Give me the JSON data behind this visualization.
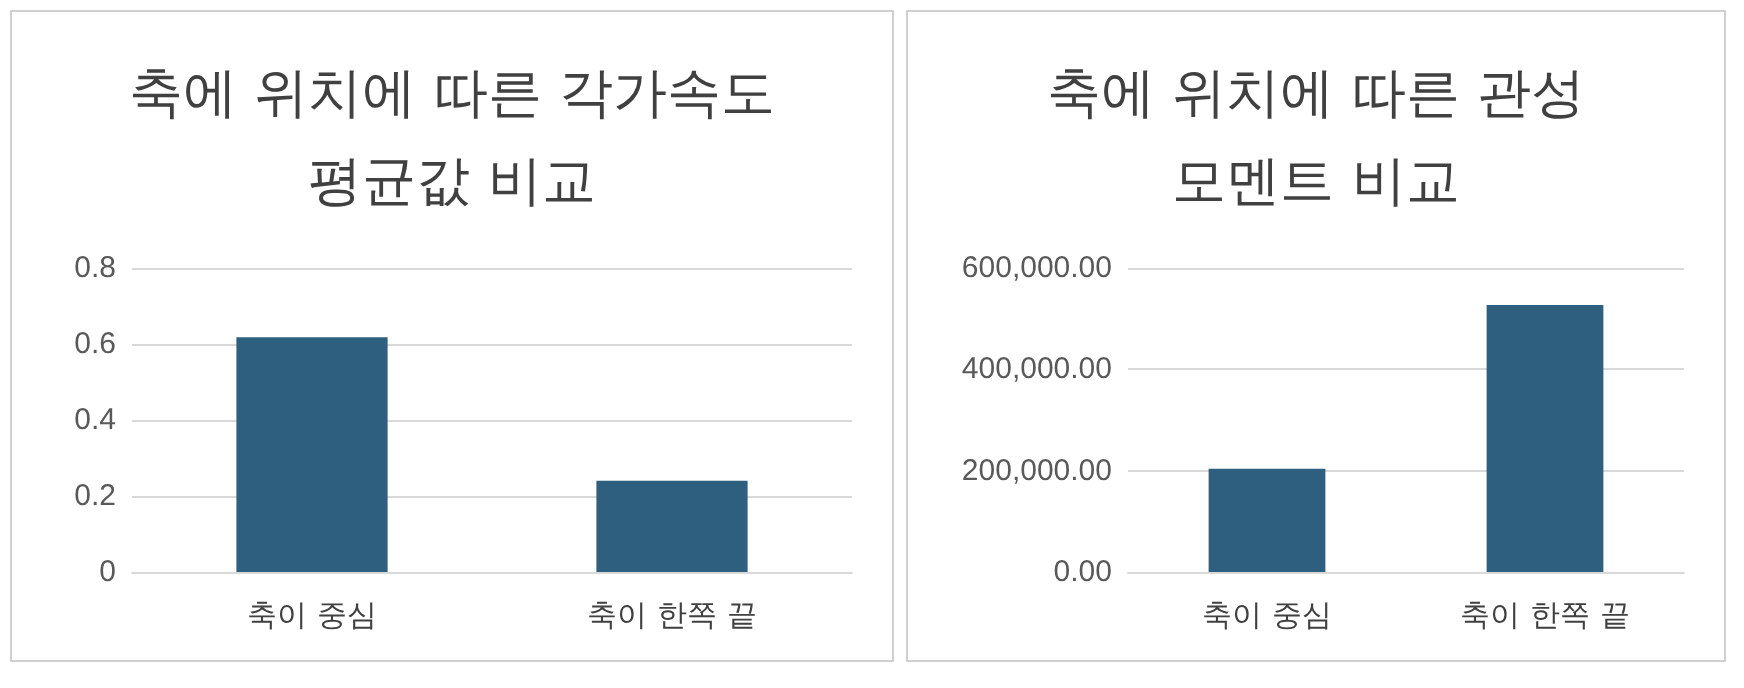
{
  "chart_data": [
    {
      "type": "bar",
      "title": "축에 위치에 따른 각가속도\n평균값 비교",
      "categories": [
        "축이 중심",
        "축이 한쪽 끝"
      ],
      "values": [
        0.618,
        0.24
      ],
      "color": "#2e5f7f",
      "ylim": [
        0,
        0.8
      ],
      "yticks": [
        0,
        0.2,
        0.4,
        0.6,
        0.8
      ],
      "grid": "y"
    },
    {
      "type": "bar",
      "title": "축에 위치에 따른 관성\n모멘트 비교",
      "categories": [
        "축이 중심",
        "축이 한쪽 끝"
      ],
      "values": [
        204000,
        527000
      ],
      "color": "#2e5f7f",
      "ylim": [
        0,
        600000
      ],
      "yticks": [
        {
          "value": 0,
          "label": "0.00"
        },
        {
          "value": 200000,
          "label": "200,000.00"
        },
        {
          "value": 400000,
          "label": "400,000.00"
        },
        {
          "value": 600000,
          "label": "600,000.00"
        }
      ],
      "grid": "y"
    }
  ]
}
